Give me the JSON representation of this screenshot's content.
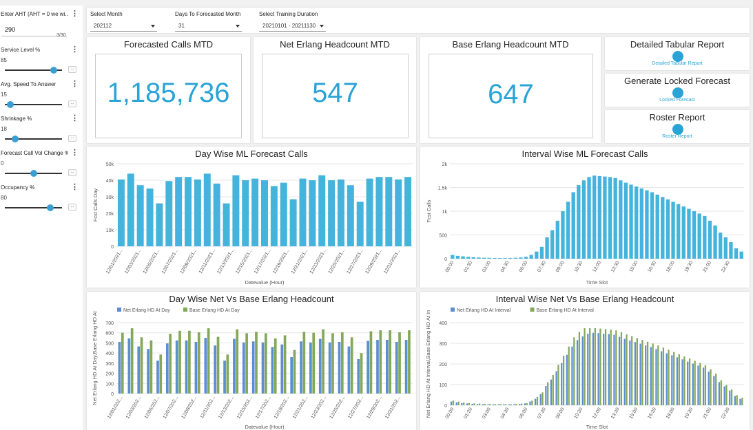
{
  "sidebar": {
    "aht": {
      "label": "Enter AHT (AHT = 0 we wi...",
      "value": "290",
      "counter": "3/30"
    },
    "params": [
      {
        "label": "Service Level %",
        "value": "85",
        "fraction": 0.85
      },
      {
        "label": "Avg. Speed To Answer",
        "value": "15",
        "fraction": 0.1
      },
      {
        "label": "Shrinkage %",
        "value": "18",
        "fraction": 0.18
      },
      {
        "label": "Forecast Call Vol Change %",
        "value": "0",
        "fraction": 0.5
      },
      {
        "label": "Occupancy %",
        "value": "80",
        "fraction": 0.8
      }
    ],
    "more_button": "..."
  },
  "filters": {
    "month": {
      "label": "Select Month",
      "value": "202112"
    },
    "days": {
      "label": "Days To Forecasted Month",
      "value": "31"
    },
    "training": {
      "label": "Select Training Duration",
      "value": "20210101 - 20211130"
    }
  },
  "kpis": [
    {
      "title": "Forecasted Calls MTD",
      "value": "1,185,736"
    },
    {
      "title": "Net Erlang Headcount MTD",
      "value": "547"
    },
    {
      "title": "Base Erlang Headcount MTD",
      "value": "647"
    }
  ],
  "reports": [
    {
      "title": "Detailed Tabular Report",
      "link": "Detailed Tabular Report"
    },
    {
      "title": "Generate Locked Forecast",
      "link": "Locked Forecast"
    },
    {
      "title": "Roster Report",
      "link": "Roster Report"
    }
  ],
  "colors": {
    "accent": "#2aa3d6",
    "bar": "#45b4dc",
    "net": "#5b8fd1",
    "base": "#84a85a"
  },
  "chart_data": [
    {
      "type": "bar",
      "title": "Day Wise ML Forecast Calls",
      "xlabel": "Datevalue (Hour)",
      "ylabel": "Fcst Calls Day",
      "ylim": [
        0,
        50000
      ],
      "yticks": [
        "0",
        "10k",
        "20k",
        "30k",
        "40k",
        "50k"
      ],
      "categories": [
        "12/01/2021",
        "12/02/2021",
        "12/03/2021",
        "12/04/2021",
        "12/05/2021",
        "12/06/2021",
        "12/07/2021",
        "12/08/2021",
        "12/09/2021",
        "12/10/2021",
        "12/11/2021",
        "12/12/2021",
        "12/13/2021",
        "12/14/2021",
        "12/15/2021",
        "12/16/2021",
        "12/17/2021",
        "12/18/2021",
        "12/19/2021",
        "12/20/2021",
        "12/21/2021",
        "12/22/2021",
        "12/23/2021",
        "12/24/2021",
        "12/25/2021",
        "12/26/2021",
        "12/27/2021",
        "12/28/2021",
        "12/29/2021",
        "12/30/2021",
        "12/31/2021"
      ],
      "tick_labels": [
        "12/01/2021...",
        "12/03/2021...",
        "12/05/2021...",
        "12/07/2021...",
        "12/09/2021...",
        "12/11/2021...",
        "12/13/2021...",
        "12/15/2021...",
        "12/17/2021...",
        "12/19/2021...",
        "12/21/2021...",
        "12/23/2021...",
        "12/25/2021...",
        "12/27/2021...",
        "12/29/2021...",
        "12/31/2021..."
      ],
      "values": [
        40500,
        44000,
        37000,
        35000,
        26000,
        39500,
        42000,
        42000,
        40500,
        44000,
        38000,
        26000,
        43000,
        40000,
        41000,
        40000,
        36500,
        38500,
        28500,
        41000,
        40000,
        43000,
        40000,
        40500,
        37000,
        27000,
        41000,
        42000,
        42000,
        40500,
        42000
      ]
    },
    {
      "type": "bar",
      "title": "Interval Wise ML Forecast Calls",
      "xlabel": "Time Slot",
      "ylabel": "Fcst Calls",
      "ylim": [
        0,
        2000
      ],
      "yticks": [
        "0",
        "500",
        "1k",
        "1.5k",
        "2k"
      ],
      "tick_labels": [
        "00:00",
        "01:30",
        "03:00",
        "04:30",
        "06:00",
        "07:30",
        "09:00",
        "10:30",
        "12:00",
        "13:30",
        "15:00",
        "16:30",
        "18:00",
        "19:30",
        "21:00",
        "22:30"
      ],
      "values": [
        80,
        60,
        50,
        40,
        30,
        25,
        20,
        18,
        15,
        15,
        15,
        15,
        20,
        25,
        40,
        80,
        150,
        250,
        450,
        600,
        800,
        1000,
        1200,
        1400,
        1550,
        1650,
        1720,
        1750,
        1740,
        1730,
        1720,
        1700,
        1650,
        1600,
        1560,
        1520,
        1480,
        1440,
        1400,
        1350,
        1300,
        1250,
        1200,
        1150,
        1100,
        1050,
        1000,
        950,
        900,
        800,
        700,
        550,
        450,
        350,
        220,
        150
      ]
    },
    {
      "type": "bar",
      "title": "Day Wise Net Vs Base Erlang Headcount",
      "xlabel": "Datevalue (Hour)",
      "ylabel": "Net Erlang HD At Day,Base Erlang HD At",
      "ylim": [
        0,
        700
      ],
      "yticks": [
        "0",
        "100",
        "200",
        "300",
        "400",
        "500",
        "600",
        "700"
      ],
      "tick_labels": [
        "12/01/202...",
        "12/03/202...",
        "12/05/202...",
        "12/07/202...",
        "12/09/202...",
        "12/11/202...",
        "12/13/202...",
        "12/15/202...",
        "12/17/202...",
        "12/19/202...",
        "12/21/202...",
        "12/23/202...",
        "12/25/202...",
        "12/27/202...",
        "12/29/202...",
        "12/31/202..."
      ],
      "series": [
        {
          "name": "Net Erlang HD At Day",
          "values": [
            510,
            545,
            465,
            440,
            325,
            495,
            525,
            525,
            510,
            550,
            475,
            325,
            540,
            505,
            515,
            505,
            460,
            485,
            360,
            515,
            505,
            540,
            505,
            510,
            465,
            340,
            520,
            530,
            530,
            510,
            530
          ]
        },
        {
          "name": "Base Erlang HD At Day",
          "values": [
            600,
            645,
            555,
            525,
            385,
            590,
            620,
            620,
            605,
            645,
            560,
            385,
            635,
            595,
            610,
            595,
            545,
            575,
            430,
            610,
            600,
            635,
            595,
            605,
            555,
            400,
            615,
            625,
            625,
            605,
            625
          ]
        }
      ]
    },
    {
      "type": "bar",
      "title": "Interval Wise Net Vs Base Erlang Headcount",
      "xlabel": "Time Slot",
      "ylabel": "Net Erlang HD At Interval,Base Erlang HD At In",
      "ylim": [
        0,
        450
      ],
      "yticks": [
        "0",
        "100",
        "200",
        "300",
        "400"
      ],
      "tick_labels": [
        "00:00",
        "01:30",
        "03:00",
        "04:30",
        "06:00",
        "07:30",
        "09:00",
        "10:30",
        "12:00",
        "13:30",
        "15:00",
        "16:30",
        "18:00",
        "19:30",
        "21:00",
        "22:30"
      ],
      "series": [
        {
          "name": "Net Erlang HD At Interval",
          "values": [
            20,
            15,
            12,
            10,
            8,
            7,
            6,
            5,
            5,
            5,
            5,
            5,
            6,
            7,
            10,
            20,
            35,
            60,
            105,
            140,
            185,
            230,
            275,
            320,
            355,
            375,
            390,
            395,
            393,
            390,
            388,
            384,
            373,
            362,
            353,
            344,
            335,
            326,
            317,
            306,
            294,
            283,
            272,
            261,
            250,
            238,
            227,
            216,
            205,
            183,
            160,
            126,
            103,
            80,
            50,
            35
          ]
        },
        {
          "name": "Base Erlang HD At Interval",
          "values": [
            25,
            20,
            15,
            12,
            10,
            9,
            8,
            7,
            6,
            6,
            6,
            6,
            7,
            9,
            12,
            25,
            45,
            70,
            125,
            165,
            220,
            270,
            320,
            370,
            400,
            420,
            420,
            420,
            418,
            415,
            412,
            408,
            398,
            386,
            376,
            366,
            356,
            346,
            336,
            326,
            314,
            302,
            290,
            278,
            266,
            254,
            242,
            230,
            218,
            196,
            172,
            136,
            110,
            86,
            55,
            40
          ]
        }
      ]
    }
  ]
}
